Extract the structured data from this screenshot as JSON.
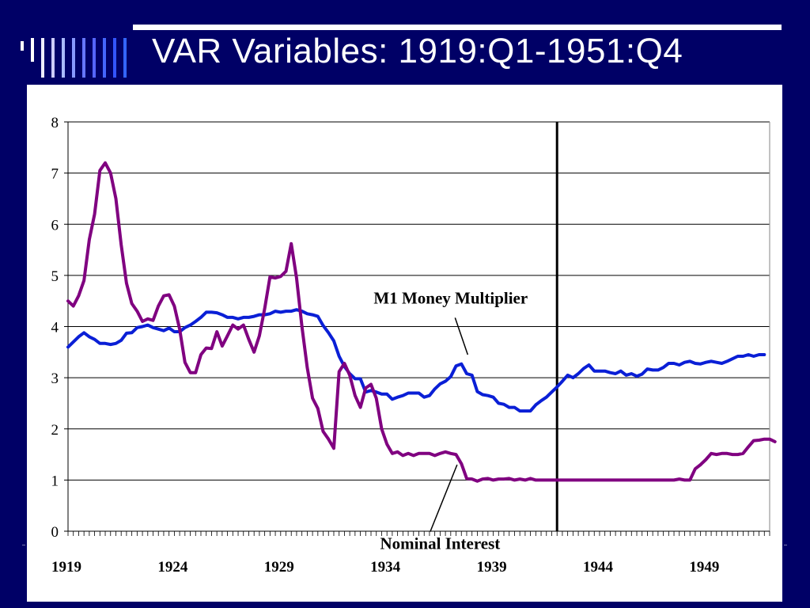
{
  "slide": {
    "title": "VAR Variables: 1919:Q1-1951:Q4"
  },
  "colors": {
    "background": "#000066",
    "accent_bars_light": "#ffffff",
    "accent_bars_blue": "#3366ff",
    "m1_series": "#0a1fd6",
    "interest_series": "#800080"
  },
  "chart_data": {
    "type": "line",
    "title": "",
    "xlabel": "",
    "ylabel": "",
    "xlim": [
      1919.0,
      1952.0
    ],
    "ylim": [
      0,
      8
    ],
    "yticks": [
      "0",
      "1",
      "2",
      "3",
      "4",
      "5",
      "6",
      "7",
      "8"
    ],
    "xtick_labels": [
      "1919",
      "1924",
      "1929",
      "1934",
      "1939",
      "1944",
      "1949"
    ],
    "grid": "horizontal",
    "vertical_marker_x": 1942.0,
    "annotations": [
      {
        "text": "M1 Money Multiplier",
        "series": "m1",
        "point": [
          1937.8,
          3.45
        ],
        "label_at": [
          1937.0,
          4.45
        ]
      },
      {
        "text": "Nominal Interest",
        "series": "interest",
        "point": [
          1937.3,
          1.3
        ],
        "label_at": [
          1936.5,
          -0.35
        ]
      }
    ],
    "series": [
      {
        "key": "m1",
        "color": "#0a1fd6",
        "points": [
          [
            1919.0,
            3.6
          ],
          [
            1919.25,
            3.7
          ],
          [
            1919.5,
            3.8
          ],
          [
            1919.75,
            3.88
          ],
          [
            1920.0,
            3.8
          ],
          [
            1920.25,
            3.75
          ],
          [
            1920.5,
            3.67
          ],
          [
            1920.75,
            3.67
          ],
          [
            1921.0,
            3.65
          ],
          [
            1921.25,
            3.67
          ],
          [
            1921.5,
            3.73
          ],
          [
            1921.75,
            3.87
          ],
          [
            1922.0,
            3.88
          ],
          [
            1922.25,
            3.98
          ],
          [
            1922.5,
            4.0
          ],
          [
            1922.75,
            4.03
          ],
          [
            1923.0,
            3.98
          ],
          [
            1923.25,
            3.95
          ],
          [
            1923.5,
            3.92
          ],
          [
            1923.75,
            3.97
          ],
          [
            1924.0,
            3.9
          ],
          [
            1924.25,
            3.9
          ],
          [
            1924.5,
            3.98
          ],
          [
            1924.75,
            4.03
          ],
          [
            1925.0,
            4.1
          ],
          [
            1925.25,
            4.18
          ],
          [
            1925.5,
            4.28
          ],
          [
            1925.75,
            4.28
          ],
          [
            1926.0,
            4.27
          ],
          [
            1926.25,
            4.23
          ],
          [
            1926.5,
            4.18
          ],
          [
            1926.75,
            4.18
          ],
          [
            1927.0,
            4.15
          ],
          [
            1927.25,
            4.18
          ],
          [
            1927.5,
            4.18
          ],
          [
            1927.75,
            4.2
          ],
          [
            1928.0,
            4.23
          ],
          [
            1928.25,
            4.23
          ],
          [
            1928.5,
            4.25
          ],
          [
            1928.75,
            4.3
          ],
          [
            1929.0,
            4.28
          ],
          [
            1929.25,
            4.3
          ],
          [
            1929.5,
            4.3
          ],
          [
            1929.75,
            4.33
          ],
          [
            1930.0,
            4.3
          ],
          [
            1930.25,
            4.25
          ],
          [
            1930.5,
            4.23
          ],
          [
            1930.75,
            4.2
          ],
          [
            1931.0,
            4.02
          ],
          [
            1931.25,
            3.88
          ],
          [
            1931.5,
            3.72
          ],
          [
            1931.75,
            3.42
          ],
          [
            1932.0,
            3.22
          ],
          [
            1932.25,
            3.08
          ],
          [
            1932.5,
            2.98
          ],
          [
            1932.75,
            2.98
          ],
          [
            1933.0,
            2.72
          ],
          [
            1933.25,
            2.75
          ],
          [
            1933.5,
            2.72
          ],
          [
            1933.75,
            2.68
          ],
          [
            1934.0,
            2.68
          ],
          [
            1934.25,
            2.58
          ],
          [
            1934.5,
            2.62
          ],
          [
            1934.75,
            2.65
          ],
          [
            1935.0,
            2.7
          ],
          [
            1935.25,
            2.7
          ],
          [
            1935.5,
            2.7
          ],
          [
            1935.75,
            2.62
          ],
          [
            1936.0,
            2.65
          ],
          [
            1936.25,
            2.78
          ],
          [
            1936.5,
            2.88
          ],
          [
            1936.75,
            2.93
          ],
          [
            1937.0,
            3.02
          ],
          [
            1937.25,
            3.23
          ],
          [
            1937.5,
            3.27
          ],
          [
            1937.75,
            3.08
          ],
          [
            1938.0,
            3.05
          ],
          [
            1938.25,
            2.73
          ],
          [
            1938.5,
            2.67
          ],
          [
            1938.75,
            2.65
          ],
          [
            1939.0,
            2.62
          ],
          [
            1939.25,
            2.5
          ],
          [
            1939.5,
            2.48
          ],
          [
            1939.75,
            2.42
          ],
          [
            1940.0,
            2.42
          ],
          [
            1940.25,
            2.35
          ],
          [
            1940.5,
            2.35
          ],
          [
            1940.75,
            2.35
          ],
          [
            1941.0,
            2.47
          ],
          [
            1941.25,
            2.55
          ],
          [
            1941.5,
            2.62
          ],
          [
            1941.75,
            2.72
          ],
          [
            1942.0,
            2.82
          ],
          [
            1942.25,
            2.93
          ],
          [
            1942.5,
            3.05
          ],
          [
            1942.75,
            3.0
          ],
          [
            1943.0,
            3.08
          ],
          [
            1943.25,
            3.18
          ],
          [
            1943.5,
            3.25
          ],
          [
            1943.75,
            3.13
          ],
          [
            1944.0,
            3.13
          ],
          [
            1944.25,
            3.13
          ],
          [
            1944.5,
            3.1
          ],
          [
            1944.75,
            3.08
          ],
          [
            1945.0,
            3.13
          ],
          [
            1945.25,
            3.05
          ],
          [
            1945.5,
            3.08
          ],
          [
            1945.75,
            3.03
          ],
          [
            1946.0,
            3.07
          ],
          [
            1946.25,
            3.17
          ],
          [
            1946.5,
            3.15
          ],
          [
            1946.75,
            3.15
          ],
          [
            1947.0,
            3.2
          ],
          [
            1947.25,
            3.28
          ],
          [
            1947.5,
            3.28
          ],
          [
            1947.75,
            3.25
          ],
          [
            1948.0,
            3.3
          ],
          [
            1948.25,
            3.32
          ],
          [
            1948.5,
            3.28
          ],
          [
            1948.75,
            3.27
          ],
          [
            1949.0,
            3.3
          ],
          [
            1949.25,
            3.32
          ],
          [
            1949.5,
            3.3
          ],
          [
            1949.75,
            3.28
          ],
          [
            1950.0,
            3.32
          ],
          [
            1950.25,
            3.37
          ],
          [
            1950.5,
            3.42
          ],
          [
            1950.75,
            3.42
          ],
          [
            1951.0,
            3.45
          ],
          [
            1951.25,
            3.42
          ],
          [
            1951.5,
            3.45
          ],
          [
            1951.75,
            3.45
          ]
        ]
      },
      {
        "key": "interest",
        "color": "#800080",
        "points": [
          [
            1919.0,
            4.5
          ],
          [
            1919.25,
            4.4
          ],
          [
            1919.5,
            4.6
          ],
          [
            1919.75,
            4.9
          ],
          [
            1920.0,
            5.7
          ],
          [
            1920.25,
            6.2
          ],
          [
            1920.5,
            7.05
          ],
          [
            1920.75,
            7.2
          ],
          [
            1921.0,
            7.0
          ],
          [
            1921.25,
            6.5
          ],
          [
            1921.5,
            5.6
          ],
          [
            1921.75,
            4.85
          ],
          [
            1922.0,
            4.45
          ],
          [
            1922.25,
            4.3
          ],
          [
            1922.5,
            4.1
          ],
          [
            1922.75,
            4.15
          ],
          [
            1923.0,
            4.12
          ],
          [
            1923.25,
            4.4
          ],
          [
            1923.5,
            4.6
          ],
          [
            1923.75,
            4.62
          ],
          [
            1924.0,
            4.4
          ],
          [
            1924.25,
            3.95
          ],
          [
            1924.5,
            3.3
          ],
          [
            1924.75,
            3.1
          ],
          [
            1925.0,
            3.1
          ],
          [
            1925.25,
            3.45
          ],
          [
            1925.5,
            3.58
          ],
          [
            1925.75,
            3.57
          ],
          [
            1926.0,
            3.9
          ],
          [
            1926.25,
            3.62
          ],
          [
            1926.5,
            3.82
          ],
          [
            1926.75,
            4.03
          ],
          [
            1927.0,
            3.95
          ],
          [
            1927.25,
            4.03
          ],
          [
            1927.5,
            3.75
          ],
          [
            1927.75,
            3.5
          ],
          [
            1928.0,
            3.82
          ],
          [
            1928.25,
            4.35
          ],
          [
            1928.5,
            4.97
          ],
          [
            1928.75,
            4.95
          ],
          [
            1929.0,
            4.98
          ],
          [
            1929.25,
            5.08
          ],
          [
            1929.5,
            5.62
          ],
          [
            1929.75,
            4.95
          ],
          [
            1930.0,
            4.0
          ],
          [
            1930.25,
            3.2
          ],
          [
            1930.5,
            2.6
          ],
          [
            1930.75,
            2.4
          ],
          [
            1931.0,
            1.95
          ],
          [
            1931.25,
            1.8
          ],
          [
            1931.5,
            1.62
          ],
          [
            1931.75,
            3.12
          ],
          [
            1932.0,
            3.28
          ],
          [
            1932.25,
            3.05
          ],
          [
            1932.5,
            2.65
          ],
          [
            1932.75,
            2.42
          ],
          [
            1933.0,
            2.8
          ],
          [
            1933.25,
            2.87
          ],
          [
            1933.5,
            2.6
          ],
          [
            1933.75,
            2.0
          ],
          [
            1934.0,
            1.7
          ],
          [
            1934.25,
            1.52
          ],
          [
            1934.5,
            1.55
          ],
          [
            1934.75,
            1.48
          ],
          [
            1935.0,
            1.52
          ],
          [
            1935.25,
            1.48
          ],
          [
            1935.5,
            1.52
          ],
          [
            1935.75,
            1.52
          ],
          [
            1936.0,
            1.52
          ],
          [
            1936.25,
            1.48
          ],
          [
            1936.5,
            1.52
          ],
          [
            1936.75,
            1.55
          ],
          [
            1937.0,
            1.52
          ],
          [
            1937.25,
            1.5
          ],
          [
            1937.5,
            1.32
          ],
          [
            1937.75,
            1.03
          ],
          [
            1938.0,
            1.02
          ],
          [
            1938.25,
            0.98
          ],
          [
            1938.5,
            1.02
          ],
          [
            1938.75,
            1.03
          ],
          [
            1939.0,
            1.0
          ],
          [
            1939.25,
            1.02
          ],
          [
            1939.5,
            1.02
          ],
          [
            1939.75,
            1.03
          ],
          [
            1940.0,
            1.0
          ],
          [
            1940.25,
            1.02
          ],
          [
            1940.5,
            1.0
          ],
          [
            1940.75,
            1.03
          ],
          [
            1941.0,
            1.0
          ],
          [
            1941.5,
            1.0
          ],
          [
            1942.0,
            1.0
          ],
          [
            1943.0,
            1.0
          ],
          [
            1944.0,
            1.0
          ],
          [
            1945.0,
            1.0
          ],
          [
            1946.0,
            1.0
          ],
          [
            1947.0,
            1.0
          ],
          [
            1947.5,
            1.0
          ],
          [
            1947.75,
            1.02
          ],
          [
            1948.0,
            1.0
          ],
          [
            1948.25,
            1.0
          ],
          [
            1948.5,
            1.22
          ],
          [
            1948.75,
            1.3
          ],
          [
            1949.0,
            1.4
          ],
          [
            1949.25,
            1.52
          ],
          [
            1949.5,
            1.5
          ],
          [
            1949.75,
            1.52
          ],
          [
            1950.0,
            1.52
          ],
          [
            1950.25,
            1.5
          ],
          [
            1950.5,
            1.5
          ],
          [
            1950.75,
            1.52
          ],
          [
            1951.0,
            1.65
          ],
          [
            1951.25,
            1.77
          ],
          [
            1951.5,
            1.78
          ],
          [
            1951.75,
            1.8
          ],
          [
            1952.0,
            1.8
          ],
          [
            1952.25,
            1.75
          ]
        ]
      }
    ]
  }
}
